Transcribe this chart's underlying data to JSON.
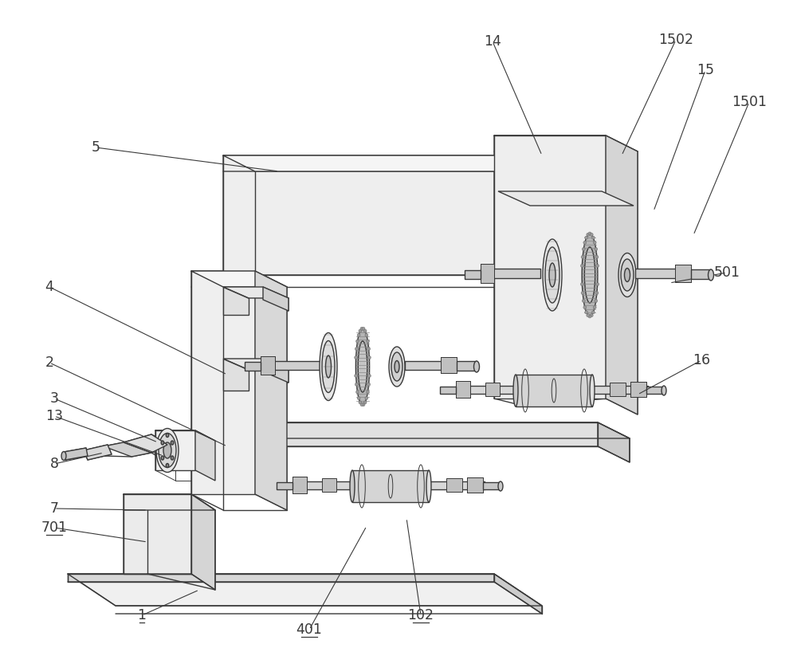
{
  "bg_color": "#ffffff",
  "lc": "#3a3a3a",
  "fc_white": "#ffffff",
  "fc_light": "#f2f2f2",
  "fc_mid": "#e0e0e0",
  "fc_dark": "#c8c8c8",
  "fc_darker": "#aaaaaa",
  "fc_gear": "#b0b0b0",
  "figsize": [
    10.0,
    8.13
  ],
  "dpi": 100
}
